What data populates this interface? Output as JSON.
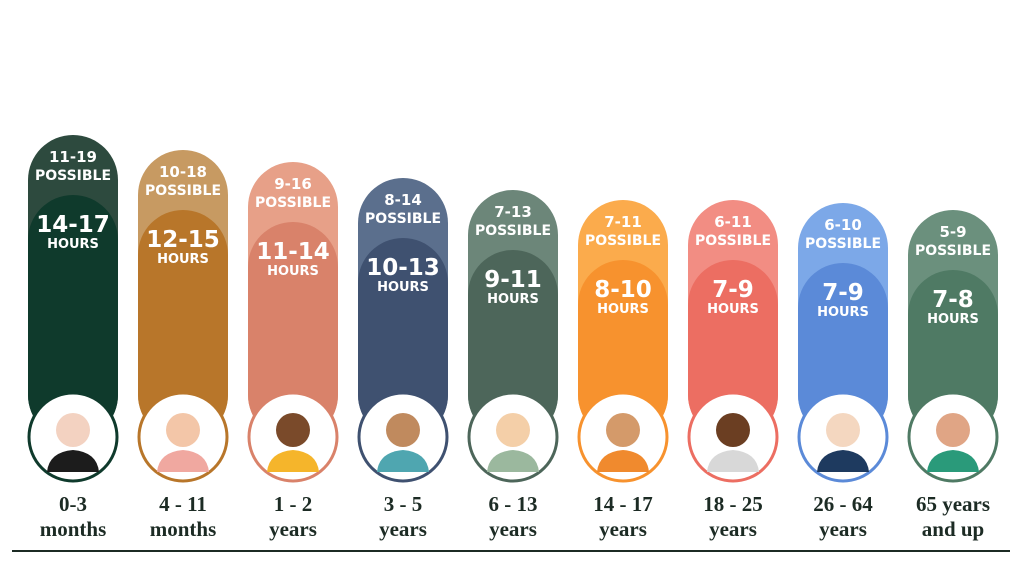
{
  "columns": [
    {
      "possible_range": "11-19",
      "possible_label": "POSSIBLE",
      "recommended": "14-17",
      "unit": "HOURS",
      "age": [
        "0-3",
        "months"
      ]
    },
    {
      "possible_range": "10-18",
      "possible_label": "POSSIBLE",
      "recommended": "12-15",
      "unit": "HOURS",
      "age": [
        "4 - 11",
        "months"
      ]
    },
    {
      "possible_range": "9-16",
      "possible_label": "POSSIBLE",
      "recommended": "11-14",
      "unit": "HOURS",
      "age": [
        "1 - 2",
        "years"
      ]
    },
    {
      "possible_range": "8-14",
      "possible_label": "POSSIBLE",
      "recommended": "10-13",
      "unit": "HOURS",
      "age": [
        "3 - 5",
        "years"
      ]
    },
    {
      "possible_range": "7-13",
      "possible_label": "POSSIBLE",
      "recommended": "9-11",
      "unit": "HOURS",
      "age": [
        "6 - 13",
        "years"
      ]
    },
    {
      "possible_range": "7-11",
      "possible_label": "POSSIBLE",
      "recommended": "8-10",
      "unit": "HOURS",
      "age": [
        "14 - 17",
        "years"
      ]
    },
    {
      "possible_range": "6-11",
      "possible_label": "POSSIBLE",
      "recommended": "7-9",
      "unit": "HOURS",
      "age": [
        "18 - 25",
        "years"
      ]
    },
    {
      "possible_range": "6-10",
      "possible_label": "POSSIBLE",
      "recommended": "7-9",
      "unit": "HOURS",
      "age": [
        "26 - 64",
        "years"
      ]
    },
    {
      "possible_range": "5-9",
      "possible_label": "POSSIBLE",
      "recommended": "7-8",
      "unit": "HOURS",
      "age": [
        "65 years",
        "and up"
      ]
    }
  ]
}
